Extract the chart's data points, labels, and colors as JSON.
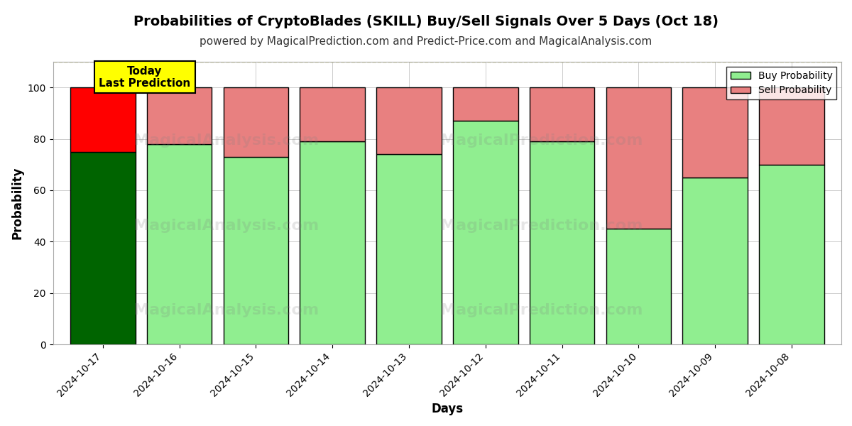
{
  "title": "Probabilities of CryptoBlades (SKILL) Buy/Sell Signals Over 5 Days (Oct 18)",
  "subtitle": "powered by MagicalPrediction.com and Predict-Price.com and MagicalAnalysis.com",
  "xlabel": "Days",
  "ylabel": "Probability",
  "dates": [
    "2024-10-17",
    "2024-10-16",
    "2024-10-15",
    "2024-10-14",
    "2024-10-13",
    "2024-10-12",
    "2024-10-11",
    "2024-10-10",
    "2024-10-09",
    "2024-10-08"
  ],
  "buy_probs": [
    75,
    78,
    73,
    79,
    74,
    87,
    79,
    45,
    65,
    70
  ],
  "sell_probs": [
    25,
    22,
    27,
    21,
    26,
    13,
    21,
    55,
    35,
    30
  ],
  "today_buy_color": "#006400",
  "today_sell_color": "#ff0000",
  "future_buy_color": "#90EE90",
  "future_sell_color": "#E88080",
  "bar_edge_color": "#000000",
  "today_annotation_bg": "#ffff00",
  "today_annotation_text": "Today\nLast Prediction",
  "legend_buy_label": "Buy Probability",
  "legend_sell_label": "Sell Probability",
  "ylim": [
    0,
    110
  ],
  "yticks": [
    0,
    20,
    40,
    60,
    80,
    100
  ],
  "dashed_line_y": 110,
  "background_color": "#ffffff",
  "grid_color": "#cccccc",
  "title_fontsize": 14,
  "subtitle_fontsize": 11,
  "axis_label_fontsize": 12,
  "tick_fontsize": 10,
  "bar_width": 0.85
}
